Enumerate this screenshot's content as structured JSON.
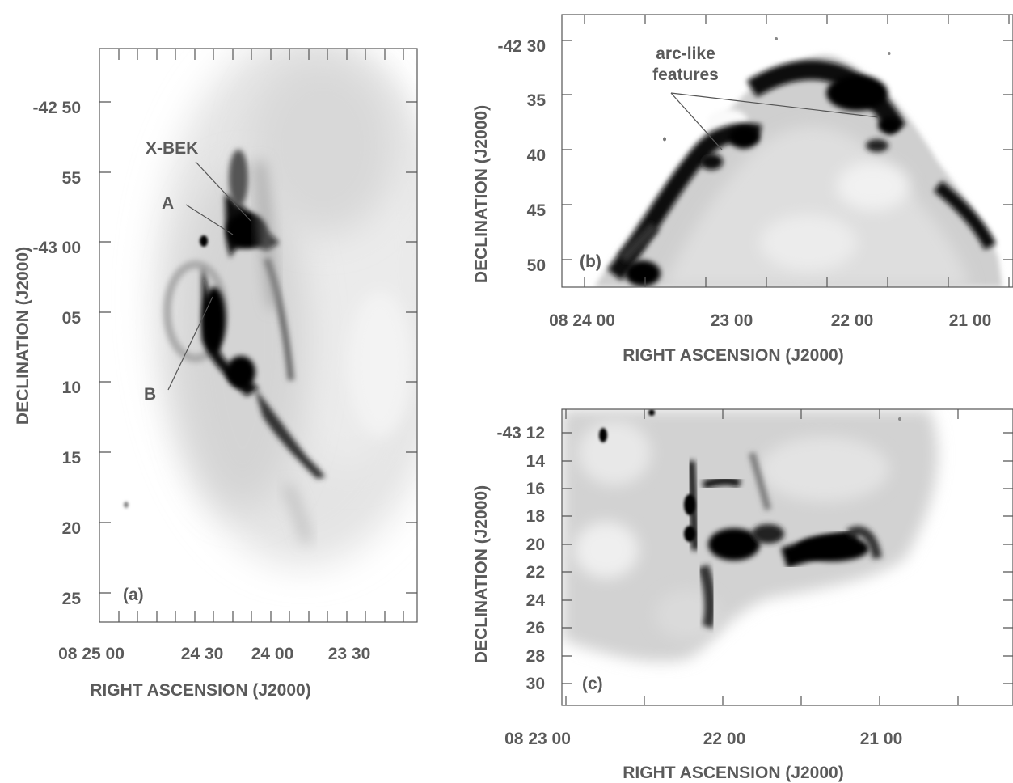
{
  "panels": {
    "a": {
      "label": "(a)",
      "xlabel": "RIGHT ASCENSION (J2000)",
      "ylabel": "DECLINATION (J2000)",
      "xticks": [
        "08 25 00",
        "24 30",
        "24 00",
        "23 30"
      ],
      "yticks": [
        "-42 50",
        "55",
        "-43 00",
        "05",
        "10",
        "15",
        "20",
        "25"
      ],
      "annotations": {
        "xbek": "X-BEK",
        "a": "A",
        "b": "B"
      }
    },
    "b": {
      "label": "(b)",
      "xlabel": "RIGHT ASCENSION (J2000)",
      "ylabel": "DECLINATION (J2000)",
      "xticks": [
        "08 24 00",
        "23 00",
        "22 00",
        "21 00"
      ],
      "yticks": [
        "-42 30",
        "35",
        "40",
        "45",
        "50"
      ],
      "annotations": {
        "arc_line1": "arc-like",
        "arc_line2": "features"
      }
    },
    "c": {
      "label": "(c)",
      "xlabel": "RIGHT ASCENSION (J2000)",
      "ylabel": "DECLINATION (J2000)",
      "xticks": [
        "08 23 00",
        "22 00",
        "21 00"
      ],
      "yticks": [
        "-43 12",
        "14",
        "16",
        "18",
        "20",
        "22",
        "24",
        "26",
        "28",
        "30"
      ]
    }
  }
}
